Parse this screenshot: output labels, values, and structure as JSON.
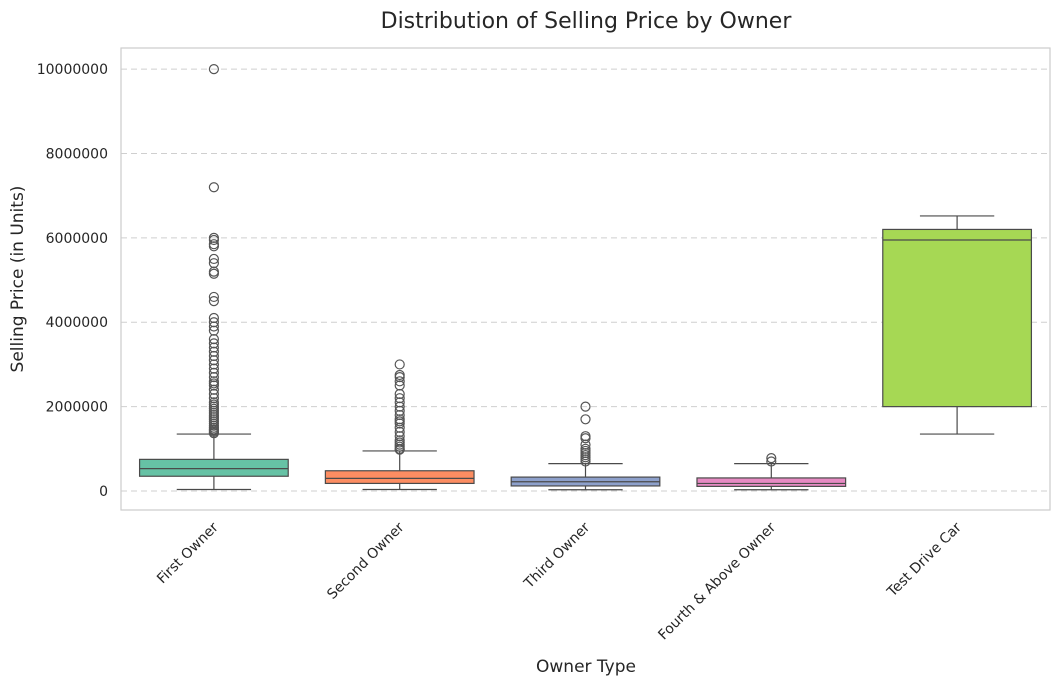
{
  "chart_data": {
    "type": "box",
    "title": "Distribution of Selling Price by Owner",
    "xlabel": "Owner Type",
    "ylabel": "Selling Price (in Units)",
    "ylim": [
      -450000,
      10500000
    ],
    "yticks": [
      0,
      2000000,
      4000000,
      6000000,
      8000000,
      10000000
    ],
    "ytick_labels": [
      "0",
      "2000000",
      "4000000",
      "6000000",
      "8000000",
      "10000000"
    ],
    "grid": "y-dashed",
    "categories": [
      "First Owner",
      "Second Owner",
      "Third Owner",
      "Fourth & Above Owner",
      "Test Drive Car"
    ],
    "colors": [
      "#66c2a5",
      "#fc8d62",
      "#8da0cb",
      "#e78ac3",
      "#a6d854"
    ],
    "boxes": [
      {
        "category": "First Owner",
        "whisker_low": 35000,
        "q1": 350000,
        "median": 530000,
        "q3": 750000,
        "whisker_high": 1350000,
        "outliers": [
          1370000,
          1400000,
          1430000,
          1460000,
          1500000,
          1550000,
          1600000,
          1650000,
          1700000,
          1750000,
          1800000,
          1850000,
          1900000,
          1950000,
          2000000,
          2050000,
          2100000,
          2200000,
          2300000,
          2400000,
          2500000,
          2550000,
          2600000,
          2700000,
          2800000,
          2900000,
          3000000,
          3100000,
          3200000,
          3300000,
          3400000,
          3500000,
          3600000,
          3800000,
          3900000,
          4000000,
          4100000,
          4500000,
          4600000,
          5150000,
          5200000,
          5400000,
          5500000,
          5800000,
          5850000,
          5950000,
          6000000,
          7200000,
          10000000
        ]
      },
      {
        "category": "Second Owner",
        "whisker_low": 35000,
        "q1": 180000,
        "median": 300000,
        "q3": 480000,
        "whisker_high": 950000,
        "outliers": [
          980000,
          1000000,
          1050000,
          1100000,
          1150000,
          1200000,
          1300000,
          1400000,
          1500000,
          1600000,
          1650000,
          1700000,
          1800000,
          1900000,
          2000000,
          2100000,
          2200000,
          2300000,
          2500000,
          2600000,
          2700000,
          2750000,
          3000000
        ]
      },
      {
        "category": "Third Owner",
        "whisker_low": 30000,
        "q1": 120000,
        "median": 220000,
        "q3": 330000,
        "whisker_high": 650000,
        "outliers": [
          700000,
          750000,
          800000,
          850000,
          900000,
          950000,
          1000000,
          1100000,
          1250000,
          1300000,
          1700000,
          2000000
        ]
      },
      {
        "category": "Fourth & Above Owner",
        "whisker_low": 30000,
        "q1": 110000,
        "median": 180000,
        "q3": 310000,
        "whisker_high": 650000,
        "outliers": [
          700000,
          780000
        ]
      },
      {
        "category": "Test Drive Car",
        "whisker_low": 1350000,
        "q1": 2000000,
        "median": 5950000,
        "q3": 6200000,
        "whisker_high": 6520000,
        "outliers": []
      }
    ]
  }
}
